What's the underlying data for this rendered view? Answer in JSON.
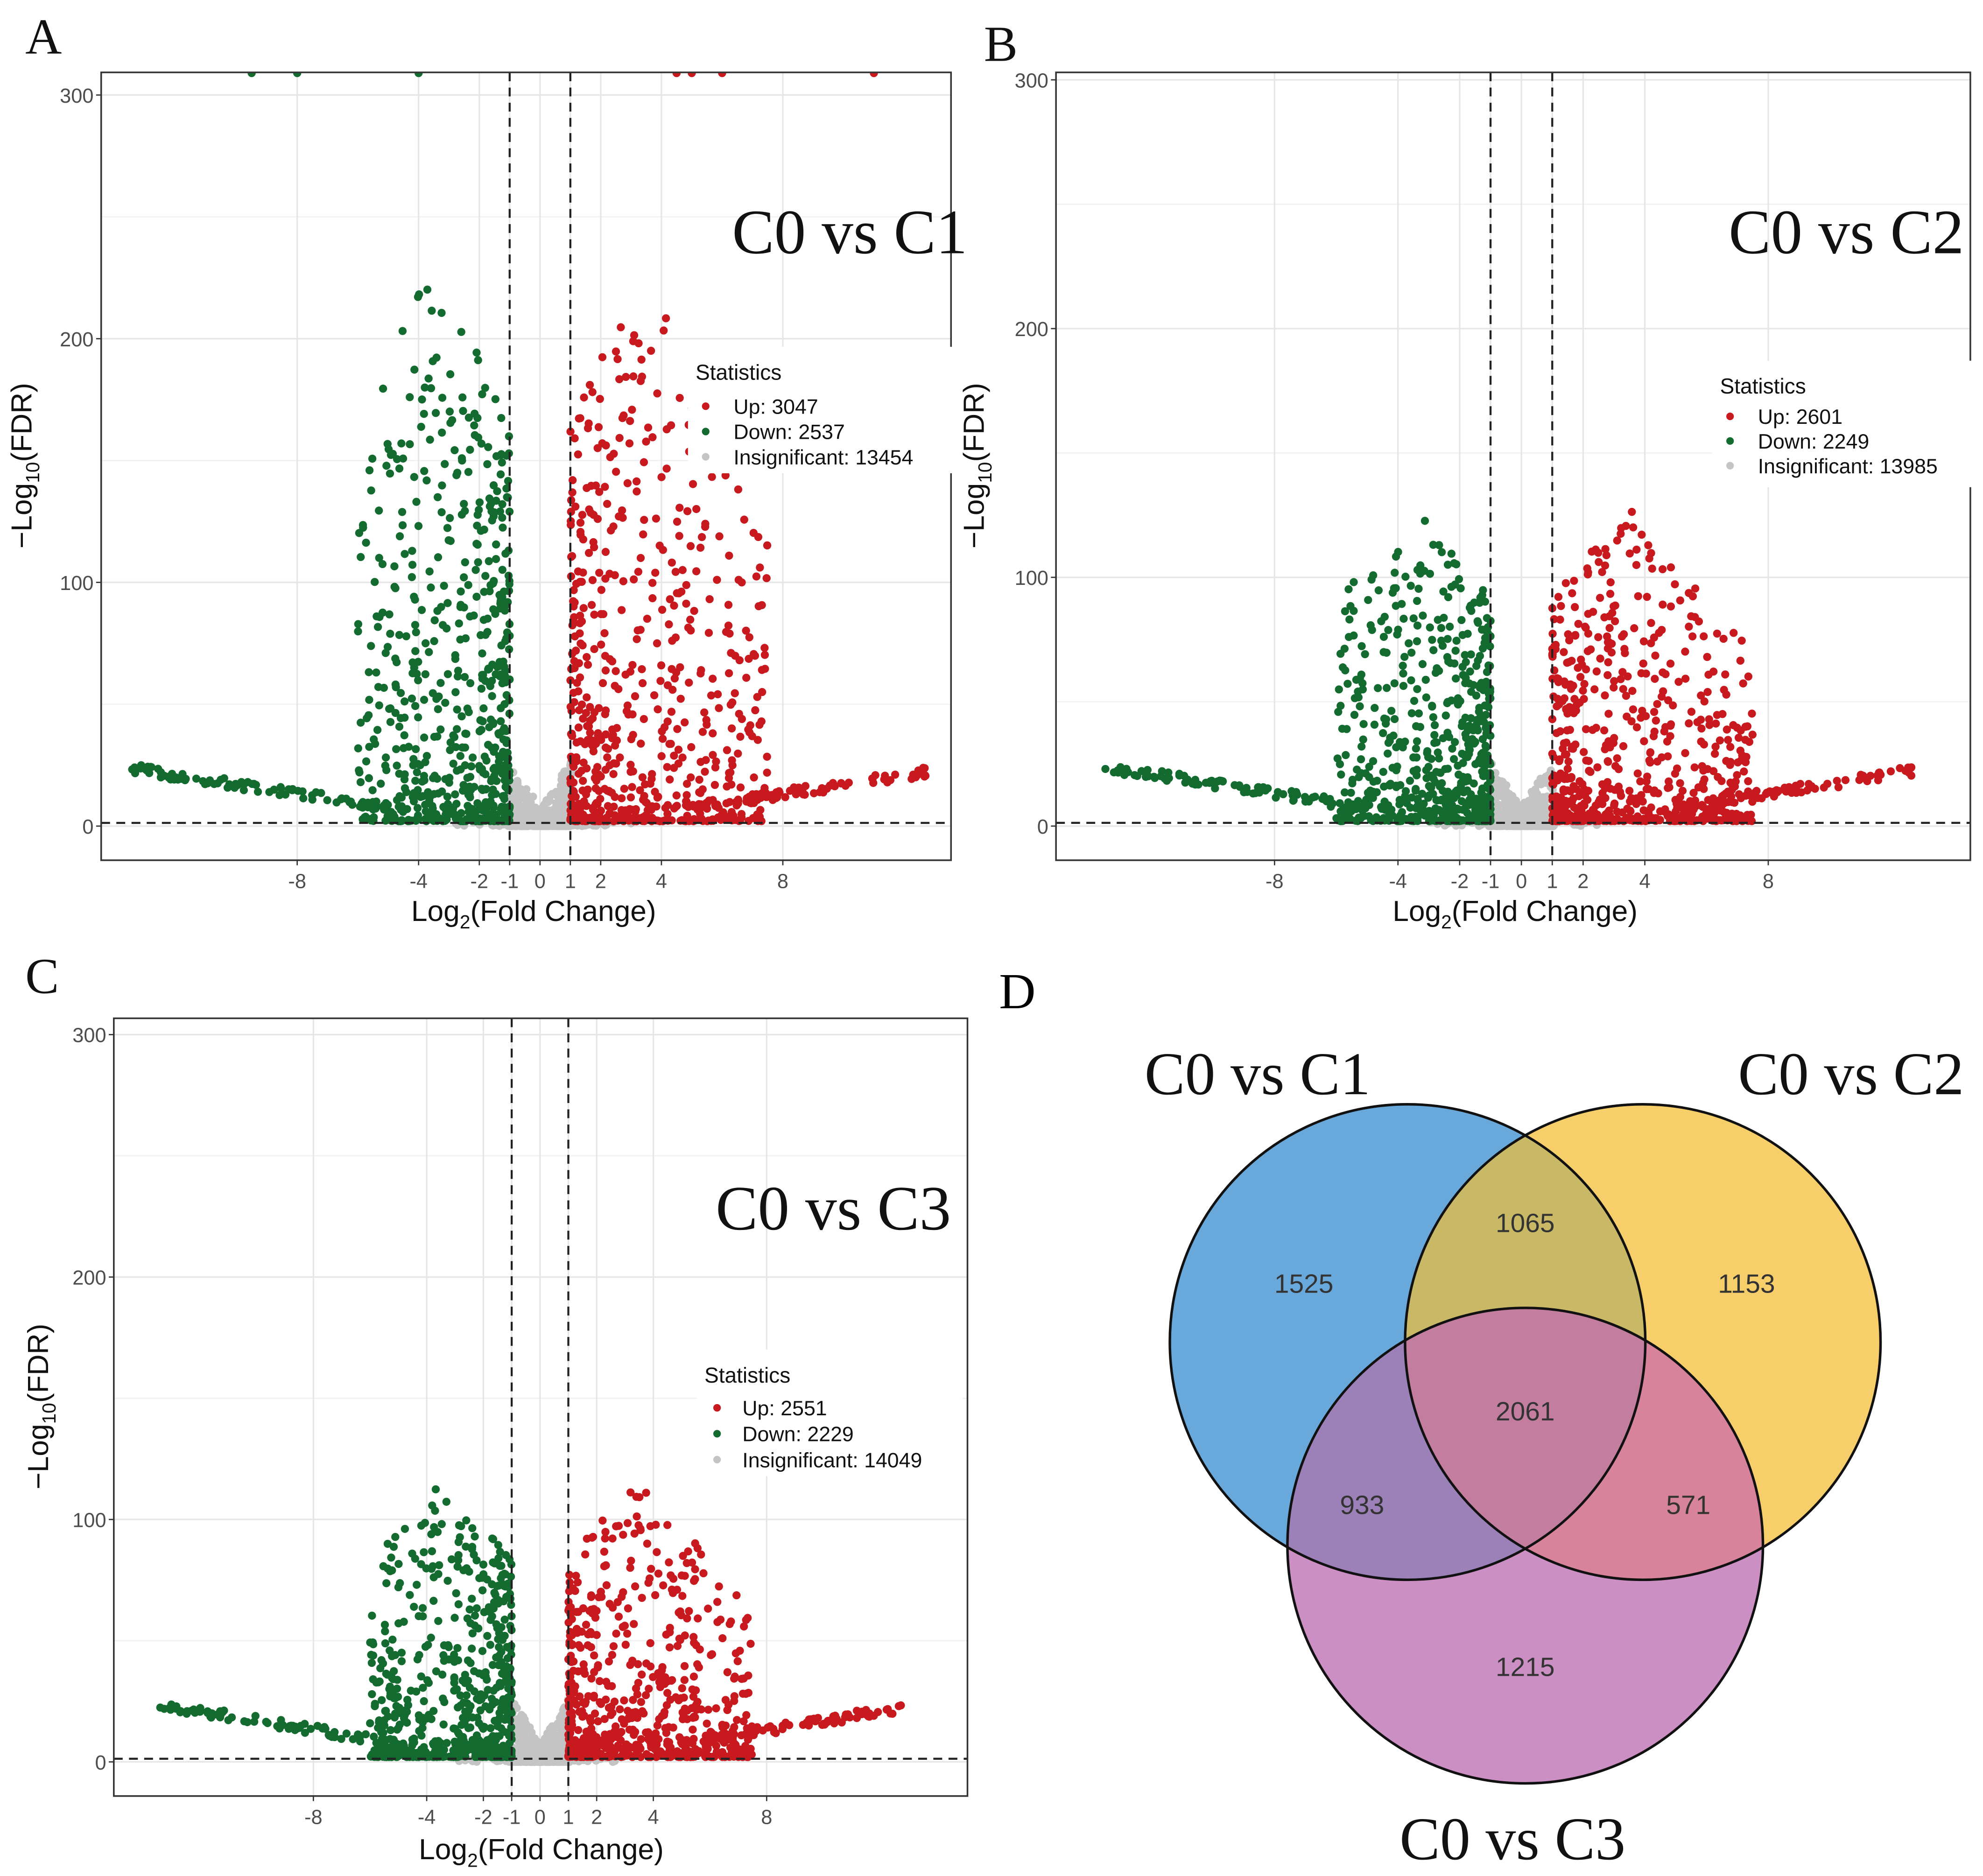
{
  "colors": {
    "up": "#c8191f",
    "down": "#136b2f",
    "insignificant": "#c4c4c4",
    "venn_a": "#68a8da",
    "venn_b": "#f6ce6a",
    "venn_c": "#cb8fc3"
  },
  "chart_data": [
    {
      "type": "scatter",
      "panel_letter": "A",
      "title": "C0 vs C1",
      "xlabel": {
        "base": "Log",
        "sub": "2",
        "rest": "(Fold Change)"
      },
      "ylabel": {
        "prefix": "−Log",
        "sub": "10",
        "rest": "(FDR)"
      },
      "xticks": [
        "-8",
        "-4",
        "-2",
        "-1",
        "0",
        "1",
        "2",
        "4",
        "8"
      ],
      "yticks": [
        "0",
        "100",
        "200",
        "300"
      ],
      "xlim": [
        -14.5,
        13.5
      ],
      "ylim": [
        -14,
        305
      ],
      "fold_change_threshold": [
        -1,
        1
      ],
      "fdr_threshold_line": 1.3,
      "legend": {
        "title": "Statistics",
        "items": [
          {
            "key": "up",
            "label": "Up: 3047"
          },
          {
            "key": "down",
            "label": "Down: 2537"
          },
          {
            "key": "insignificant",
            "label": "Insignificant: 13454"
          }
        ],
        "position": "center-right"
      },
      "counts": {
        "up": 3047,
        "down": 2537,
        "insignificant": 13454
      }
    },
    {
      "type": "scatter",
      "panel_letter": "B",
      "title": "C0 vs C2",
      "xlabel": {
        "base": "Log",
        "sub": "2",
        "rest": "(Fold Change)"
      },
      "ylabel": {
        "prefix": "−Log",
        "sub": "10",
        "rest": "(FDR)"
      },
      "xticks": [
        "-8",
        "-4",
        "-2",
        "-1",
        "0",
        "1",
        "2",
        "4",
        "8"
      ],
      "yticks": [
        "0",
        "100",
        "200",
        "300"
      ],
      "xlim": [
        -15,
        14.6
      ],
      "ylim": [
        -14,
        302
      ],
      "fold_change_threshold": [
        -1,
        1
      ],
      "fdr_threshold_line": 1.3,
      "legend": {
        "title": "Statistics",
        "items": [
          {
            "key": "up",
            "label": "Up: 2601"
          },
          {
            "key": "down",
            "label": "Down: 2249"
          },
          {
            "key": "insignificant",
            "label": "Insignificant: 13985"
          }
        ],
        "position": "center-right"
      },
      "counts": {
        "up": 2601,
        "down": 2249,
        "insignificant": 13985
      }
    },
    {
      "type": "scatter",
      "panel_letter": "C",
      "title": "C0 vs C3",
      "xlabel": {
        "base": "Log",
        "sub": "2",
        "rest": "(Fold Change)"
      },
      "ylabel": {
        "prefix": "−Log",
        "sub": "10",
        "rest": "(FDR)"
      },
      "xticks": [
        "-8",
        "-4",
        "-2",
        "-1",
        "0",
        "1",
        "2",
        "4",
        "8"
      ],
      "yticks": [
        "0",
        "100",
        "200",
        "300"
      ],
      "xlim": [
        -15,
        15
      ],
      "ylim": [
        -14,
        305
      ],
      "fold_change_threshold": [
        -1,
        1
      ],
      "fdr_threshold_line": 1.3,
      "legend": {
        "title": "Statistics",
        "items": [
          {
            "key": "up",
            "label": "Up: 2551"
          },
          {
            "key": "down",
            "label": "Down: 2229"
          },
          {
            "key": "insignificant",
            "label": "Insignificant: 14049"
          }
        ],
        "position": "center-right"
      },
      "counts": {
        "up": 2551,
        "down": 2229,
        "insignificant": 14049
      }
    }
  ],
  "venn": {
    "panel_letter": "D",
    "sets": [
      "C0 vs C1",
      "C0 vs C2",
      "C0 vs C3"
    ],
    "regions": {
      "only_c1": "1525",
      "only_c2": "1153",
      "only_c3": "1215",
      "c1_c2": "1065",
      "c1_c3": "933",
      "c2_c3": "571",
      "all": "2061"
    }
  }
}
